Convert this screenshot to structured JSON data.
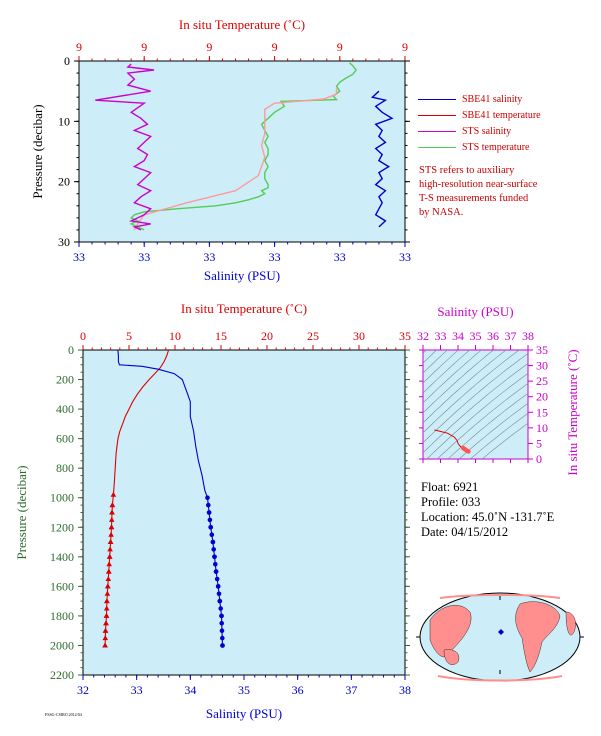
{
  "colors": {
    "salinity": "#0000cc",
    "temperature": "#dd0000",
    "sts_salinity": "#cc00cc",
    "sts_temperature": "#55cc55",
    "sts_temperature_light": "#ff9a9a",
    "plot_bg": "#cdeef8",
    "depth_axis": "#2e6b2e",
    "ts_axis": "#cc00cc"
  },
  "chart_data": [
    {
      "id": "near-surface",
      "type": "line",
      "top_axis_title": "In situ Temperature (˚C)",
      "top_ticks": [
        "9",
        "9",
        "9",
        "9",
        "9",
        "9"
      ],
      "bottom_axis_title": "Salinity (PSU)",
      "bottom_ticks": [
        "33",
        "33",
        "33",
        "33",
        "33",
        "33"
      ],
      "ylabel": "Pressure (decibar)",
      "ylim": [
        0,
        30
      ],
      "y_ticks": [
        "0",
        "10",
        "20",
        "30"
      ],
      "series": [
        {
          "name": "STS temperature",
          "frac_of_axis": [
            0.83,
            0.84,
            0.85,
            0.84,
            0.82,
            0.8,
            0.79,
            0.8,
            0.78,
            0.79,
            0.62,
            0.63,
            0.6,
            0.58,
            0.56,
            0.57,
            0.58,
            0.57,
            0.58,
            0.58,
            0.57,
            0.58,
            0.57,
            0.57,
            0.58,
            0.58,
            0.56,
            0.57,
            0.55,
            0.52,
            0.48,
            0.42,
            0.3,
            0.2,
            0.17,
            0.16,
            0.18,
            0.16,
            0.18,
            0.2
          ],
          "pressure": [
            0.3,
            0.8,
            1.5,
            2.2,
            2.8,
            3.5,
            4.2,
            5.0,
            5.8,
            6.4,
            6.7,
            7.5,
            8.5,
            9.5,
            10.5,
            11.5,
            12.5,
            13.5,
            14.5,
            15.5,
            16.5,
            17.5,
            18.5,
            19.5,
            20.5,
            21.0,
            21.5,
            22.0,
            22.5,
            23.0,
            23.5,
            24.0,
            24.5,
            25.0,
            25.5,
            26.0,
            26.5,
            27.0,
            27.5,
            28.0
          ]
        },
        {
          "name": "SBE41 temperature",
          "frac_of_axis": [
            0.79,
            0.79,
            0.75,
            0.69,
            0.6,
            0.57,
            0.57,
            0.57,
            0.56,
            0.57,
            0.55,
            0.48,
            0.33,
            0.2,
            0.18,
            0.17
          ],
          "pressure": [
            4.5,
            5.5,
            6.3,
            6.6,
            7.0,
            8.0,
            10.0,
            12.0,
            14.0,
            16.0,
            19.0,
            21.5,
            23.5,
            25.5,
            27.0,
            28.0
          ]
        },
        {
          "name": "STS salinity",
          "frac_of_axis": [
            0.16,
            0.15,
            0.23,
            0.15,
            0.17,
            0.15,
            0.22,
            0.05,
            0.2,
            0.16,
            0.19,
            0.21,
            0.17,
            0.22,
            0.2,
            0.18,
            0.21,
            0.2,
            0.17,
            0.22,
            0.2,
            0.18,
            0.22,
            0.19,
            0.17,
            0.22,
            0.2,
            0.18,
            0.16,
            0.22,
            0.17,
            0.19
          ],
          "pressure": [
            0.5,
            1.0,
            1.5,
            2.0,
            3.0,
            4.0,
            5.0,
            6.5,
            7.0,
            8.5,
            9.5,
            10.5,
            11.5,
            12.5,
            13.5,
            14.5,
            15.5,
            16.5,
            17.5,
            18.5,
            19.5,
            20.5,
            21.5,
            22.5,
            23.5,
            24.5,
            25.5,
            26.0,
            26.5,
            27.0,
            27.5,
            28.0
          ]
        },
        {
          "name": "SBE41 salinity",
          "frac_of_axis": [
            0.92,
            0.9,
            0.94,
            0.91,
            0.93,
            0.96,
            0.91,
            0.93,
            0.92,
            0.94,
            0.91,
            0.93,
            0.92,
            0.95,
            0.92,
            0.93,
            0.91,
            0.94,
            0.92,
            0.93,
            0.92,
            0.91,
            0.94,
            0.92
          ],
          "pressure": [
            5.0,
            6.0,
            6.5,
            7.5,
            8.5,
            9.5,
            10.5,
            11.5,
            12.5,
            13.5,
            14.5,
            15.5,
            16.5,
            17.5,
            18.5,
            19.5,
            20.5,
            21.5,
            22.5,
            23.5,
            24.5,
            25.5,
            26.5,
            27.5
          ]
        }
      ],
      "legend": [
        "SBE41 salinity",
        "SBE41 temperature",
        "STS salinity",
        "STS temperature"
      ],
      "legend_placement": "right",
      "note_lines": [
        "STS refers to auxiliary",
        "high-resolution near-surface",
        "T-S measurements funded",
        "by NASA."
      ]
    },
    {
      "id": "full-profile",
      "type": "line",
      "top_axis_title": "In situ Temperature (˚C)",
      "top_ticks": [
        "0",
        "5",
        "10",
        "15",
        "20",
        "25",
        "30",
        "35"
      ],
      "temp_range": [
        0,
        35
      ],
      "bottom_axis_title": "Salinity (PSU)",
      "bottom_ticks": [
        "32",
        "33",
        "34",
        "35",
        "36",
        "37",
        "38"
      ],
      "sal_range": [
        32,
        38
      ],
      "ylabel": "Pressure (decibar)",
      "ylim": [
        0,
        2200
      ],
      "y_ticks": [
        "0",
        "200",
        "400",
        "600",
        "800",
        "1000",
        "1200",
        "1400",
        "1600",
        "1800",
        "2000",
        "2200"
      ],
      "series": [
        {
          "name": "Temperature",
          "axis": "temperature",
          "values": [
            9.3,
            9.1,
            8.8,
            8.4,
            7.8,
            7.2,
            6.5,
            5.9,
            5.4,
            5.0,
            4.6,
            4.3,
            4.0,
            3.8,
            3.7,
            3.6,
            3.5,
            3.4,
            3.3,
            3.2,
            3.15,
            3.1,
            3.0,
            2.9,
            2.8,
            2.7,
            2.6,
            2.55,
            2.5,
            2.45,
            2.4
          ],
          "pressure": [
            0,
            40,
            80,
            120,
            160,
            200,
            250,
            300,
            350,
            400,
            450,
            500,
            550,
            600,
            650,
            700,
            800,
            900,
            980,
            1050,
            1100,
            1200,
            1300,
            1400,
            1500,
            1600,
            1700,
            1800,
            1850,
            1900,
            2000
          ],
          "markers_from_index": 18
        },
        {
          "name": "Salinity",
          "axis": "salinity",
          "values": [
            32.65,
            32.66,
            32.66,
            32.68,
            33.1,
            33.4,
            33.7,
            33.85,
            33.9,
            33.95,
            34.0,
            34.0,
            34.0,
            34.06,
            34.1,
            34.15,
            34.22,
            34.27,
            34.32,
            34.35,
            34.38,
            34.42,
            34.45,
            34.48,
            34.52,
            34.55,
            34.58,
            34.6
          ],
          "pressure": [
            0,
            40,
            80,
            100,
            110,
            130,
            160,
            200,
            250,
            300,
            350,
            400,
            450,
            550,
            650,
            750,
            850,
            950,
            1000,
            1100,
            1200,
            1300,
            1400,
            1500,
            1600,
            1700,
            1800,
            2000
          ],
          "markers_from_index": 18
        }
      ]
    },
    {
      "id": "ts-diagram",
      "type": "scatter",
      "top_axis_title": "Salinity (PSU)",
      "top_ticks": [
        "32",
        "33",
        "34",
        "35",
        "36",
        "37",
        "38"
      ],
      "sal_range": [
        32,
        38
      ],
      "right_axis_title": "In situ Temperature (˚C)",
      "right_ticks": [
        "0",
        "5",
        "10",
        "15",
        "20",
        "25",
        "30",
        "35"
      ],
      "temp_range": [
        0,
        35
      ],
      "series": [
        {
          "name": "T-S profile",
          "salinity": [
            32.65,
            32.9,
            33.4,
            33.8,
            33.95,
            34.0,
            34.1,
            34.2,
            34.3,
            34.35,
            34.4,
            34.45,
            34.5,
            34.55,
            34.6
          ],
          "temperature": [
            9.3,
            9.0,
            8.3,
            7.0,
            5.9,
            5.0,
            4.2,
            3.8,
            3.5,
            3.3,
            3.1,
            2.9,
            2.7,
            2.55,
            2.4
          ]
        }
      ]
    }
  ],
  "profile_info": {
    "float": "Float:  6921",
    "profile": "Profile:  033",
    "location": "Location:  45.0˚N  -131.7˚E",
    "date": "Date:  04/15/2012"
  },
  "credit": "FSSG-CSIRO 2012/04"
}
